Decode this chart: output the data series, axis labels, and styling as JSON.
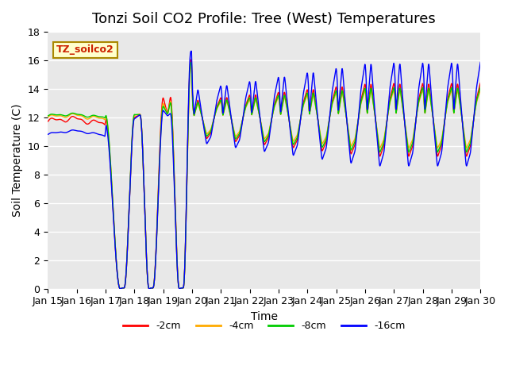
{
  "title": "Tonzi Soil CO2 Profile: Tree (West) Temperatures",
  "xlabel": "Time",
  "ylabel": "Soil Temperature (C)",
  "ylim": [
    0,
    18
  ],
  "xlim": [
    0,
    15
  ],
  "legend_label": "TZ_soilco2",
  "series_labels": [
    "-2cm",
    "-4cm",
    "-8cm",
    "-16cm"
  ],
  "series_colors": [
    "#ff0000",
    "#ffaa00",
    "#00cc00",
    "#0000ff"
  ],
  "xtick_labels": [
    "Jan 15",
    "Jan 16",
    "Jan 17",
    "Jan 18",
    "Jan 19",
    "Jan 20",
    "Jan 21",
    "Jan 22",
    "Jan 23",
    "Jan 24",
    "Jan 25",
    "Jan 26",
    "Jan 27",
    "Jan 28",
    "Jan 29",
    "Jan 30"
  ],
  "background_color": "#e8e8e8",
  "title_fontsize": 13,
  "axis_fontsize": 10,
  "tick_fontsize": 9
}
